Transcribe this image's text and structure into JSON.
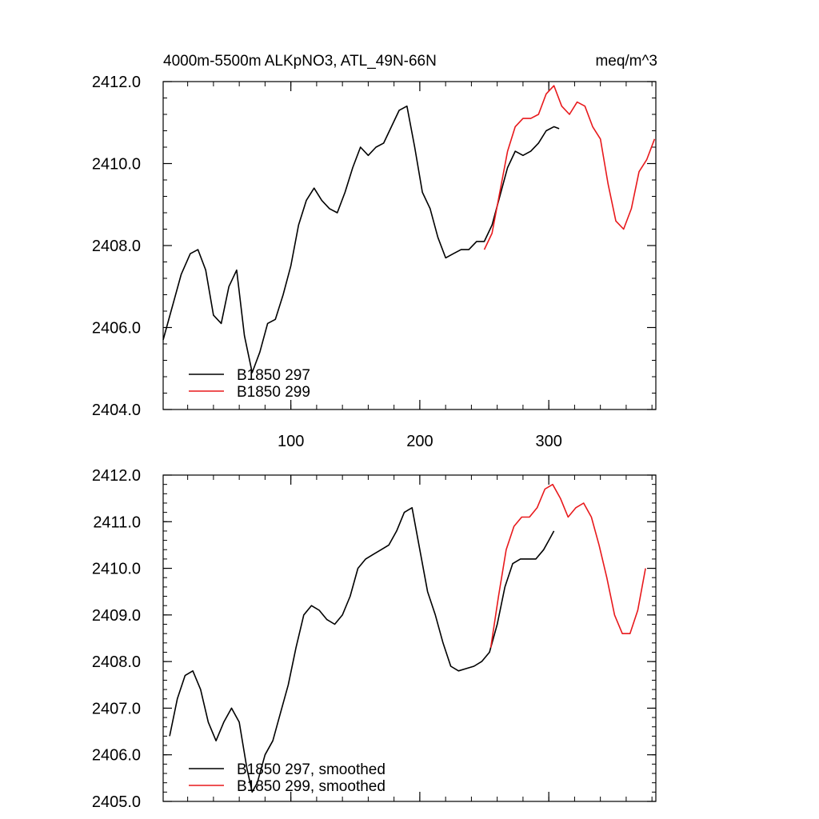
{
  "chart_data": [
    {
      "type": "line",
      "title_left": "4000m-5500m ALKpNO3, ATL_49N-66N",
      "title_right": "meq/m^3",
      "xlabel": "",
      "ylabel": "",
      "xlim": [
        1,
        383
      ],
      "ylim": [
        2404.0,
        2412.0
      ],
      "x_ticks": [
        100,
        200,
        300
      ],
      "y_ticks": [
        "2404.0",
        "2406.0",
        "2408.0",
        "2410.0",
        "2412.0"
      ],
      "grid": false,
      "legend_position": "bottom-left",
      "series": [
        {
          "name": "B1850 297",
          "color": "#000000",
          "x": [
            1,
            8,
            15,
            22,
            28,
            34,
            40,
            46,
            52,
            58,
            64,
            70,
            76,
            82,
            88,
            94,
            100,
            106,
            112,
            118,
            124,
            130,
            136,
            142,
            148,
            154,
            160,
            166,
            172,
            178,
            184,
            190,
            196,
            202,
            208,
            214,
            220,
            226,
            232,
            238,
            244,
            250,
            256,
            262,
            268,
            274,
            280,
            286,
            292,
            298,
            304,
            308
          ],
          "values": [
            2405.7,
            2406.5,
            2407.3,
            2407.8,
            2407.9,
            2407.4,
            2406.3,
            2406.1,
            2407.0,
            2407.4,
            2405.8,
            2404.9,
            2405.4,
            2406.1,
            2406.2,
            2406.8,
            2407.5,
            2408.5,
            2409.1,
            2409.4,
            2409.1,
            2408.9,
            2408.8,
            2409.3,
            2409.9,
            2410.4,
            2410.2,
            2410.4,
            2410.5,
            2410.9,
            2411.3,
            2411.4,
            2410.4,
            2409.3,
            2408.9,
            2408.2,
            2407.7,
            2407.8,
            2407.9,
            2407.9,
            2408.1,
            2408.1,
            2408.5,
            2409.2,
            2409.9,
            2410.3,
            2410.2,
            2410.3,
            2410.5,
            2410.8,
            2410.9,
            2410.85
          ]
        },
        {
          "name": "B1850 299",
          "color": "#e8191c",
          "x": [
            250,
            256,
            262,
            268,
            274,
            280,
            286,
            292,
            298,
            304,
            310,
            316,
            322,
            328,
            334,
            340,
            346,
            352,
            358,
            364,
            370,
            376,
            382
          ],
          "values": [
            2407.9,
            2408.3,
            2409.3,
            2410.3,
            2410.9,
            2411.1,
            2411.1,
            2411.2,
            2411.7,
            2411.9,
            2411.4,
            2411.2,
            2411.5,
            2411.4,
            2410.9,
            2410.6,
            2409.5,
            2408.6,
            2408.4,
            2408.9,
            2409.8,
            2410.1,
            2410.6
          ]
        }
      ]
    },
    {
      "type": "line",
      "xlabel": "",
      "ylabel": "",
      "xlim": [
        1,
        383
      ],
      "ylim": [
        2405.0,
        2412.0
      ],
      "y_ticks": [
        "2405.0",
        "2406.0",
        "2407.0",
        "2408.0",
        "2409.0",
        "2410.0",
        "2411.0",
        "2412.0"
      ],
      "grid": false,
      "legend_position": "bottom-left",
      "series": [
        {
          "name": "B1850 297, smoothed",
          "color": "#000000",
          "x": [
            6,
            12,
            18,
            24,
            30,
            36,
            42,
            48,
            54,
            60,
            66,
            70,
            74,
            80,
            86,
            92,
            98,
            104,
            110,
            116,
            122,
            128,
            134,
            140,
            146,
            152,
            158,
            164,
            170,
            176,
            182,
            188,
            194,
            200,
            206,
            212,
            218,
            224,
            230,
            236,
            242,
            248,
            254,
            260,
            266,
            272,
            278,
            284,
            290,
            296,
            300,
            304
          ],
          "values": [
            2406.4,
            2407.2,
            2407.7,
            2407.8,
            2407.4,
            2406.7,
            2406.3,
            2406.7,
            2407.0,
            2406.7,
            2405.7,
            2405.2,
            2405.4,
            2406.0,
            2406.3,
            2406.9,
            2407.5,
            2408.3,
            2409.0,
            2409.2,
            2409.1,
            2408.9,
            2408.8,
            2409.0,
            2409.4,
            2410.0,
            2410.2,
            2410.3,
            2410.4,
            2410.5,
            2410.8,
            2411.2,
            2411.3,
            2410.4,
            2409.5,
            2409.0,
            2408.4,
            2407.9,
            2407.8,
            2407.85,
            2407.9,
            2408.0,
            2408.2,
            2408.8,
            2409.6,
            2410.1,
            2410.2,
            2410.2,
            2410.2,
            2410.4,
            2410.6,
            2410.8
          ]
        },
        {
          "name": "B1850 299, smoothed",
          "color": "#e8191c",
          "x": [
            255,
            261,
            267,
            273,
            279,
            285,
            291,
            297,
            303,
            309,
            315,
            321,
            327,
            333,
            339,
            345,
            351,
            357,
            363,
            369,
            375
          ],
          "values": [
            2408.3,
            2409.4,
            2410.4,
            2410.9,
            2411.1,
            2411.1,
            2411.3,
            2411.7,
            2411.8,
            2411.5,
            2411.1,
            2411.3,
            2411.4,
            2411.1,
            2410.5,
            2409.8,
            2409.0,
            2408.6,
            2408.6,
            2409.1,
            2410.0
          ]
        }
      ]
    }
  ]
}
